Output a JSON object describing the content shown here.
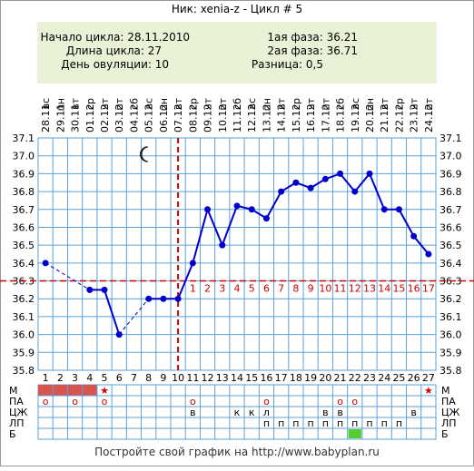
{
  "title": "Ник: xenia-z - Цикл # 5",
  "info": {
    "left": [
      "Начало цикла: 28.11.2010",
      "Длина цикла: 27",
      "День овуляции: 10"
    ],
    "right": [
      "1ая фаза: 36.21",
      "2ая фаза: 36.71",
      "Разница: 0,5"
    ]
  },
  "footer": "Постройте свой график на http://www.babyplan.ru",
  "chart_data": {
    "type": "line",
    "days": [
      1,
      2,
      3,
      4,
      5,
      6,
      7,
      8,
      9,
      10,
      11,
      12,
      13,
      14,
      15,
      16,
      17,
      18,
      19,
      20,
      21,
      22,
      23,
      24,
      25,
      26,
      27
    ],
    "dates": [
      "28.11",
      "29.11",
      "30.11",
      "01.12",
      "02.12",
      "03.12",
      "04.12",
      "05.12",
      "06.12",
      "07.12",
      "08.12",
      "09.12",
      "10.12",
      "11.12",
      "12.12",
      "13.12",
      "14.12",
      "15.12",
      "16.12",
      "17.12",
      "18.12",
      "19.12",
      "20.12",
      "21.12",
      "22.12",
      "23.12",
      "24.12"
    ],
    "weekdays": [
      "вс",
      "пн",
      "вт",
      "ср",
      "чт",
      "пт",
      "сб",
      "вс",
      "пн",
      "вт",
      "ср",
      "чт",
      "пт",
      "сб",
      "вс",
      "пн",
      "вт",
      "ср",
      "чт",
      "пт",
      "сб",
      "вс",
      "пн",
      "вт",
      "ср",
      "чт",
      "пт"
    ],
    "temps": [
      36.4,
      null,
      null,
      36.25,
      36.25,
      36.0,
      null,
      36.2,
      36.2,
      36.2,
      36.4,
      36.7,
      36.5,
      36.72,
      36.7,
      36.65,
      36.8,
      36.85,
      36.82,
      36.87,
      36.9,
      36.8,
      36.9,
      36.7,
      36.7,
      36.55,
      36.45
    ],
    "ylim": [
      35.8,
      37.1
    ],
    "y_ticks": [
      "35.8",
      "35.9",
      "36.0",
      "36.1",
      "36.2",
      "36.3",
      "36.4",
      "36.5",
      "36.6",
      "36.7",
      "36.8",
      "36.9",
      "37.0",
      "37.1"
    ],
    "coverline": 36.3,
    "ovulation_day": 10,
    "phase2_labels": [
      "1",
      "2",
      "3",
      "4",
      "5",
      "6",
      "7",
      "8",
      "9",
      "10",
      "11",
      "12",
      "13",
      "14",
      "15",
      "16",
      "17"
    ],
    "moon_day": 8,
    "colors": {
      "line": "#0000cc",
      "grid": "#5aa0d8",
      "coverline": "#cc0000",
      "ovulation": "#cc0000",
      "menses": "#d9534f",
      "lp_mark": "#55cc33"
    },
    "rows": {
      "labels": [
        "М",
        "ПА",
        "ЦЖ",
        "ЛП",
        "Б"
      ],
      "М": {
        "bar_days": [
          1,
          2,
          3,
          4
        ],
        "stars": [
          5,
          27
        ]
      },
      "ПА": [
        "o",
        "",
        "o",
        "",
        "o",
        "",
        "",
        "",
        "",
        "",
        "o",
        "",
        "",
        "",
        "",
        "o",
        "",
        "",
        "",
        "",
        "o",
        "o",
        "",
        "",
        "",
        "",
        ""
      ],
      "ЦЖ": [
        "",
        "",
        "",
        "",
        "",
        "",
        "",
        "",
        "",
        "",
        "в",
        "",
        "",
        "к",
        "к",
        "л",
        "",
        "",
        "",
        "в",
        "в",
        "",
        "",
        "",
        "",
        "в",
        ""
      ],
      "ЛП": [
        "",
        "",
        "",
        "",
        "",
        "",
        "",
        "",
        "",
        "",
        "",
        "",
        "",
        "",
        "",
        "п",
        "п",
        "п",
        "п",
        "п",
        "п",
        "п",
        "п",
        "п",
        "п",
        "",
        ""
      ],
      "Б": {
        "mark_days": [
          22
        ]
      }
    }
  }
}
